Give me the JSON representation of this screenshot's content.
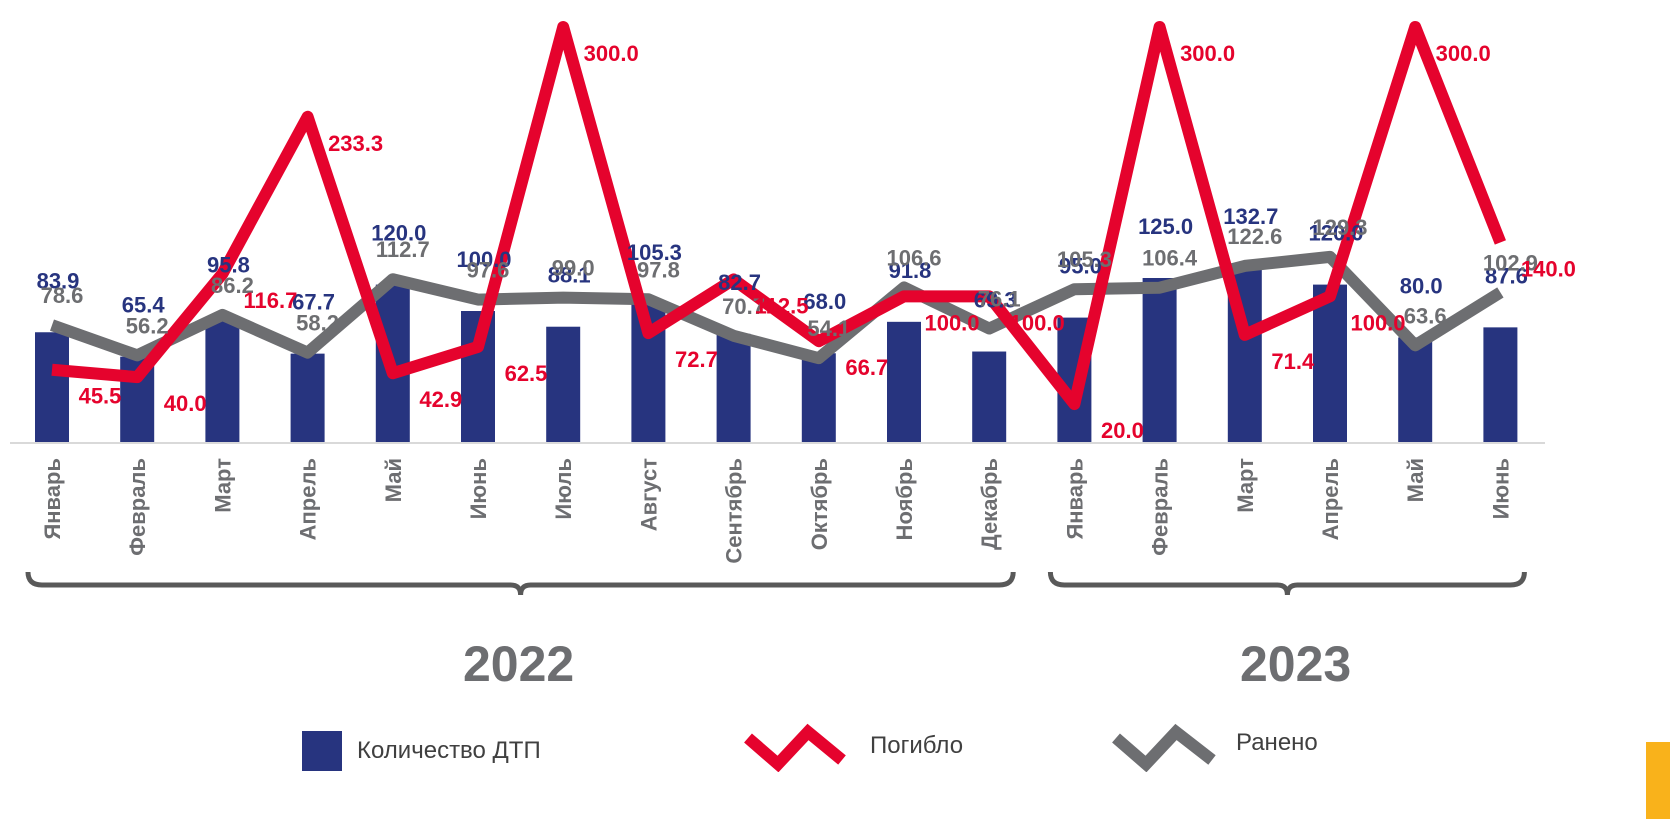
{
  "chart_data": {
    "type": "bar",
    "categories": [
      "Январь",
      "Февраль",
      "Март",
      "Апрель",
      "Май",
      "Июнь",
      "Июль",
      "Август",
      "Сентябрь",
      "Октябрь",
      "Ноябрь",
      "Декабрь",
      "Январь",
      "Февраль",
      "Март",
      "Апрель",
      "Май",
      "Июнь"
    ],
    "years": [
      {
        "label": "2022",
        "from": 0,
        "to": 11
      },
      {
        "label": "2023",
        "from": 12,
        "to": 17
      }
    ],
    "series": [
      {
        "name": "Количество ДТП",
        "kind": "bar",
        "color": "#27347f",
        "values": [
          83.9,
          65.4,
          95.8,
          67.7,
          120.0,
          100.0,
          88.1,
          105.3,
          82.7,
          68.0,
          91.8,
          69.3,
          95.0,
          125.0,
          132.7,
          120.0,
          80.0,
          87.6
        ]
      },
      {
        "name": "Погибло",
        "kind": "line",
        "color": "#e5032d",
        "values": [
          45.5,
          40.0,
          116.7,
          233.3,
          42.9,
          62.5,
          300.0,
          72.7,
          112.5,
          66.7,
          100.0,
          100.0,
          20.0,
          300.0,
          71.4,
          100.0,
          300.0,
          140.0
        ]
      },
      {
        "name": "Ранено",
        "kind": "line",
        "color": "#6d6e71",
        "values": [
          78.6,
          56.2,
          86.2,
          58.2,
          112.7,
          97.6,
          99.0,
          97.8,
          70.7,
          54.1,
          106.6,
          76.1,
          105.3,
          106.4,
          122.6,
          129.3,
          63.6,
          102.9
        ]
      }
    ]
  },
  "legend": [
    {
      "label": "Количество ДТП",
      "shape": "square",
      "color": "#27347f"
    },
    {
      "label": "Погибло",
      "shape": "zigzag",
      "color": "#e5032d"
    },
    {
      "label": "Ранено",
      "shape": "zigzag",
      "color": "#6d6e71"
    }
  ],
  "accent_color": "#f9b21b"
}
